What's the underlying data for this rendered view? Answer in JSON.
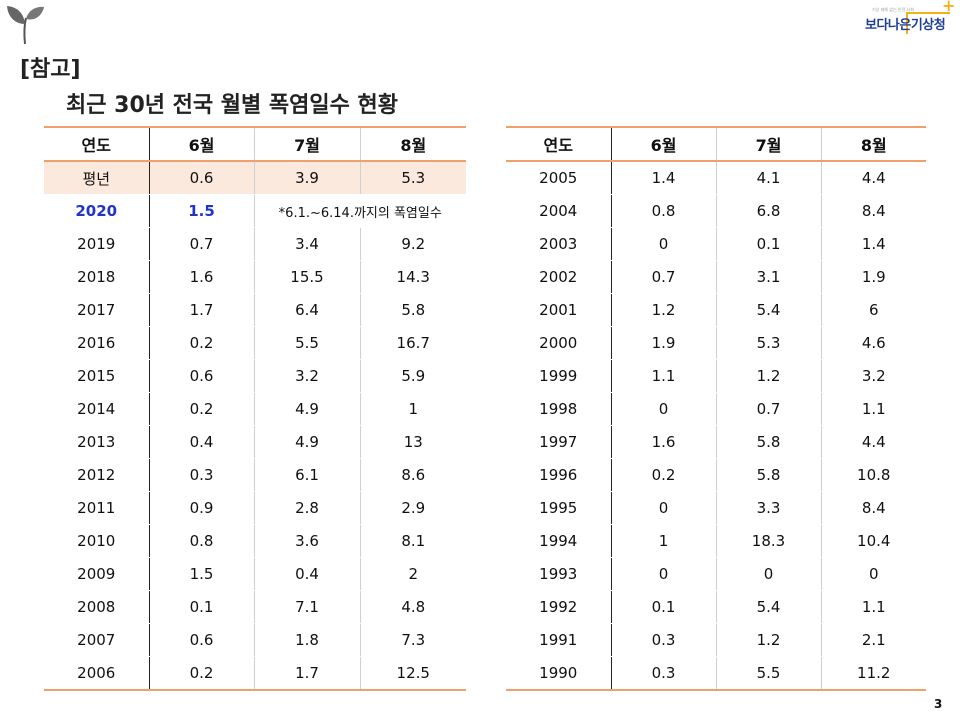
{
  "logo": {
    "tagline": "기상 재해 없는 안전 사회",
    "name_part1": "보다나은",
    "name_part2": "기상청"
  },
  "ref_label": "[참고]",
  "title": "최근 30년 전국 월별 폭염일수 현황",
  "headers": [
    "연도",
    "6월",
    "7월",
    "8월"
  ],
  "normal_row": [
    "평년",
    "0.6",
    "3.9",
    "5.3"
  ],
  "current_row": {
    "year": "2020",
    "jun": "1.5",
    "note": "*6.1.~6.14.까지의 폭염일수"
  },
  "left_rows": [
    [
      "2019",
      "0.7",
      "3.4",
      "9.2"
    ],
    [
      "2018",
      "1.6",
      "15.5",
      "14.3"
    ],
    [
      "2017",
      "1.7",
      "6.4",
      "5.8"
    ],
    [
      "2016",
      "0.2",
      "5.5",
      "16.7"
    ],
    [
      "2015",
      "0.6",
      "3.2",
      "5.9"
    ],
    [
      "2014",
      "0.2",
      "4.9",
      "1"
    ],
    [
      "2013",
      "0.4",
      "4.9",
      "13"
    ],
    [
      "2012",
      "0.3",
      "6.1",
      "8.6"
    ],
    [
      "2011",
      "0.9",
      "2.8",
      "2.9"
    ],
    [
      "2010",
      "0.8",
      "3.6",
      "8.1"
    ],
    [
      "2009",
      "1.5",
      "0.4",
      "2"
    ],
    [
      "2008",
      "0.1",
      "7.1",
      "4.8"
    ],
    [
      "2007",
      "0.6",
      "1.8",
      "7.3"
    ],
    [
      "2006",
      "0.2",
      "1.7",
      "12.5"
    ]
  ],
  "right_rows": [
    [
      "2005",
      "1.4",
      "4.1",
      "4.4"
    ],
    [
      "2004",
      "0.8",
      "6.8",
      "8.4"
    ],
    [
      "2003",
      "0",
      "0.1",
      "1.4"
    ],
    [
      "2002",
      "0.7",
      "3.1",
      "1.9"
    ],
    [
      "2001",
      "1.2",
      "5.4",
      "6"
    ],
    [
      "2000",
      "1.9",
      "5.3",
      "4.6"
    ],
    [
      "1999",
      "1.1",
      "1.2",
      "3.2"
    ],
    [
      "1998",
      "0",
      "0.7",
      "1.1"
    ],
    [
      "1997",
      "1.6",
      "5.8",
      "4.4"
    ],
    [
      "1996",
      "0.2",
      "5.8",
      "10.8"
    ],
    [
      "1995",
      "0",
      "3.3",
      "8.4"
    ],
    [
      "1994",
      "1",
      "18.3",
      "10.4"
    ],
    [
      "1993",
      "0",
      "0",
      "0"
    ],
    [
      "1992",
      "0.1",
      "5.4",
      "1.1"
    ],
    [
      "1991",
      "0.3",
      "1.2",
      "2.1"
    ],
    [
      "1990",
      "0.3",
      "5.5",
      "11.2"
    ]
  ],
  "page_number": "3",
  "colors": {
    "accent_border": "#f0a06a",
    "normal_row_bg": "#fce9de",
    "highlight_text": "#2233cc"
  }
}
